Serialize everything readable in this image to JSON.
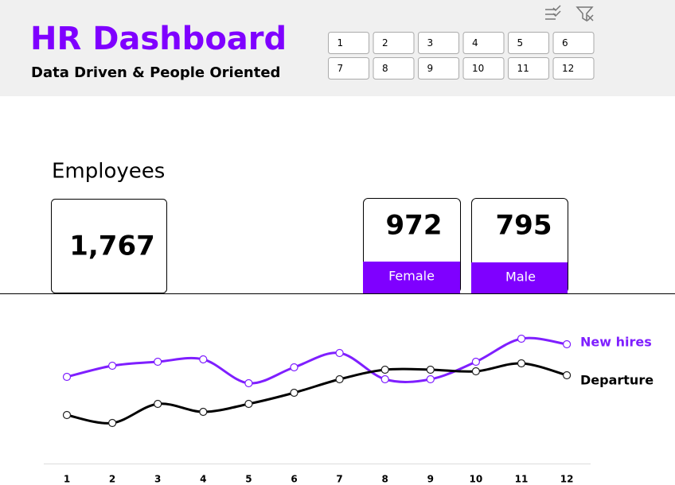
{
  "header": {
    "title": "HR Dashboard",
    "subtitle": "Data Driven & People Oriented"
  },
  "slicer": {
    "items": [
      "1",
      "2",
      "3",
      "4",
      "5",
      "6",
      "7",
      "8",
      "9",
      "10",
      "11",
      "12"
    ]
  },
  "kpis": {
    "label": "Employees",
    "total": "1,767",
    "female": {
      "value": "972",
      "label": "Female"
    },
    "male": {
      "value": "795",
      "label": "Male"
    }
  },
  "chart_data": {
    "type": "line",
    "categories": [
      "1",
      "2",
      "3",
      "4",
      "5",
      "6",
      "7",
      "8",
      "9",
      "10",
      "11",
      "12"
    ],
    "series": [
      {
        "name": "New hires",
        "color": "#7f1fff",
        "values": [
          109,
          123,
          128,
          131,
          101,
          121,
          139,
          106,
          106,
          128,
          157,
          150
        ]
      },
      {
        "name": "Departure",
        "color": "#000000",
        "values": [
          61,
          51,
          75,
          65,
          75,
          89,
          106,
          118,
          118,
          116,
          126,
          111
        ]
      }
    ]
  }
}
